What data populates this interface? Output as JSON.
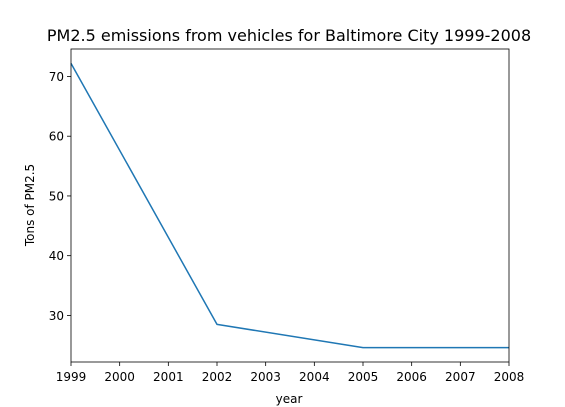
{
  "chart_data": {
    "type": "line",
    "title": "PM2.5 emissions from vehicles for Baltimore City 1999-2008",
    "xlabel": "year",
    "ylabel": "Tons of PM2.5",
    "x": [
      1999,
      2002,
      2005,
      2008
    ],
    "y": [
      72.2,
      28.5,
      24.6,
      24.6
    ],
    "xlim": [
      1999,
      2008
    ],
    "ylim": [
      22.2,
      74.6
    ],
    "xticks": [
      "1999",
      "2000",
      "2001",
      "2002",
      "2003",
      "2004",
      "2005",
      "2006",
      "2007",
      "2008"
    ],
    "yticks": [
      "30",
      "40",
      "50",
      "60",
      "70"
    ],
    "grid": false,
    "line_color": "#1f77b4"
  }
}
